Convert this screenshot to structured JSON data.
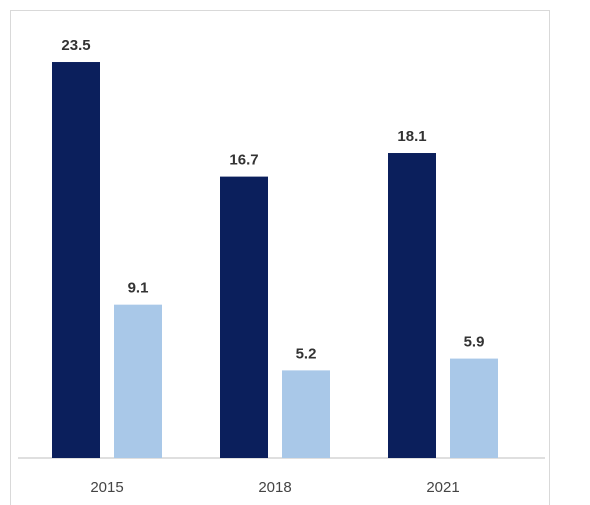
{
  "chart_data": {
    "type": "bar",
    "categories": [
      "2015",
      "2018",
      "2021"
    ],
    "series": [
      {
        "values": [
          23.5,
          16.7,
          18.1
        ],
        "color": "#0b1f5c"
      },
      {
        "values": [
          9.1,
          5.2,
          5.9
        ],
        "color": "#a9c8e8"
      }
    ],
    "title": "",
    "xlabel": "",
    "ylabel": "",
    "ylim": [
      0,
      26
    ],
    "grid": false,
    "legend": "none"
  }
}
